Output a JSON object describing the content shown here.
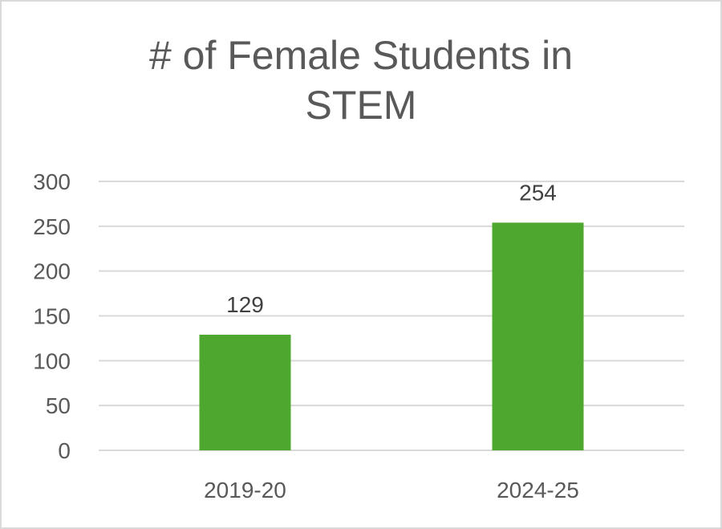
{
  "chart_data": {
    "type": "bar",
    "title_lines": [
      "# of Female Students in",
      "STEM"
    ],
    "categories": [
      "2019-20",
      "2024-25"
    ],
    "values": [
      129,
      254
    ],
    "data_labels": [
      "129",
      "254"
    ],
    "xlabel": "",
    "ylabel": "",
    "ylim": [
      0,
      300
    ],
    "y_ticks": [
      0,
      50,
      100,
      150,
      200,
      250,
      300
    ],
    "grid": true,
    "legend": "none",
    "colors": {
      "bar": "#4ea72e",
      "grid": "#d9d9d9",
      "text": "#595959",
      "border": "#d9d9d9"
    }
  }
}
